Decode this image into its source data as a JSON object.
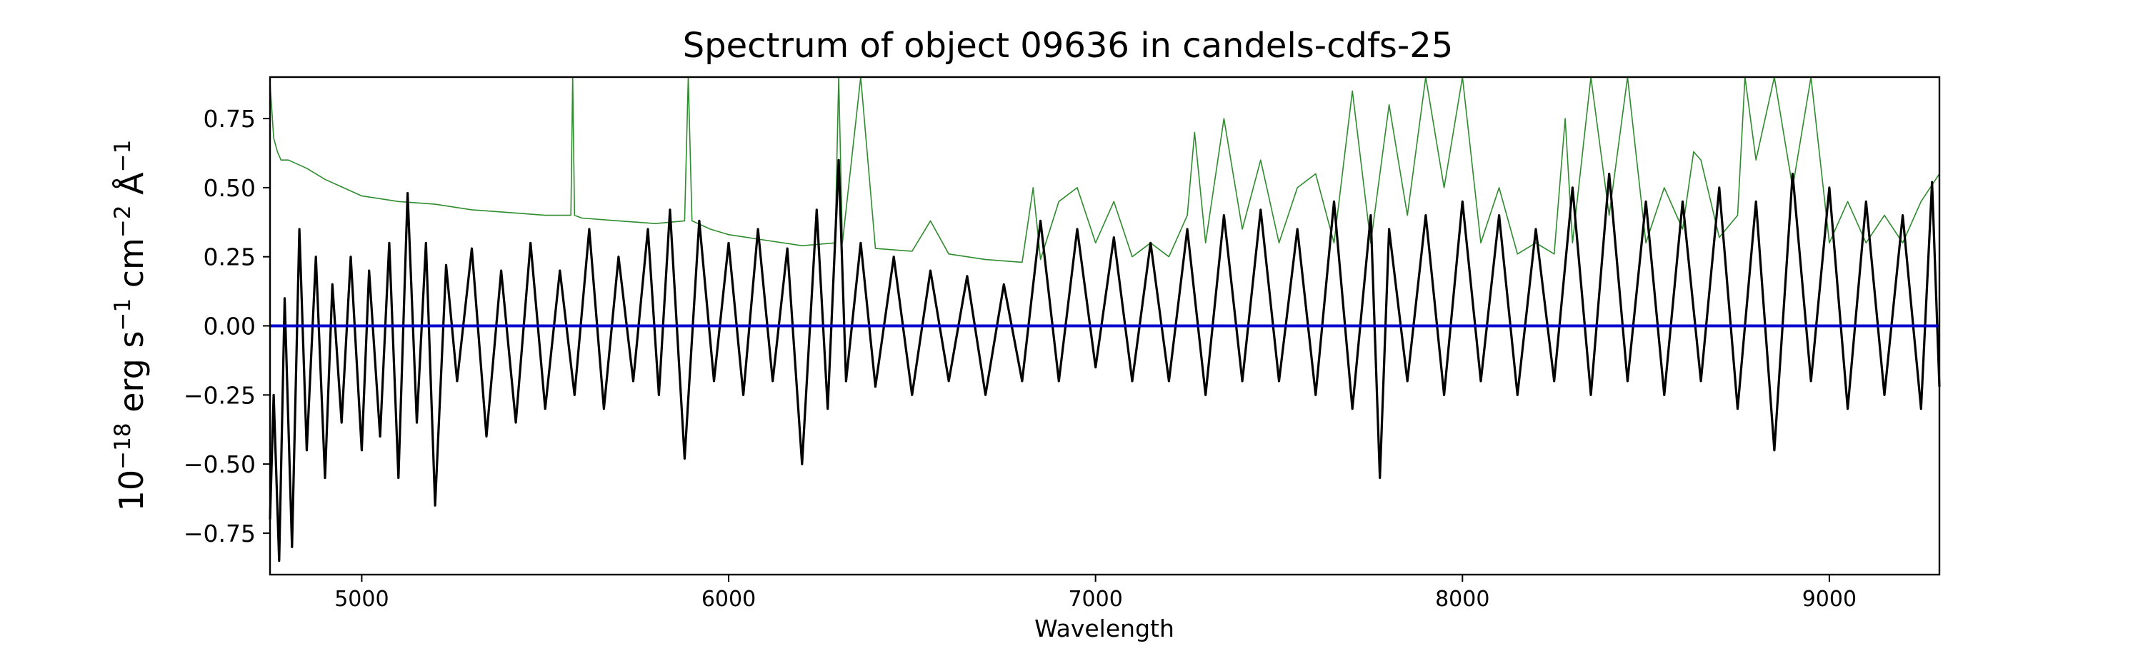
{
  "chart_data": {
    "type": "line",
    "title": "Spectrum of object 09636 in candels-cdfs-25",
    "xlabel": "Wavelength",
    "ylabel": {
      "parts": [
        "10",
        "−18",
        " erg s",
        "−1",
        " cm",
        "−2",
        " Å",
        "−1"
      ]
    },
    "xlim": [
      4750,
      9300
    ],
    "ylim": [
      -0.9,
      0.9
    ],
    "xticks": [
      5000,
      6000,
      7000,
      8000,
      9000
    ],
    "xtick_labels": [
      "5000",
      "6000",
      "7000",
      "8000",
      "9000"
    ],
    "yticks": [
      0.75,
      0.5,
      0.25,
      0.0,
      -0.25,
      -0.5,
      -0.75
    ],
    "ytick_labels": [
      "0.75",
      "0.50",
      "0.25",
      "0.00",
      "−0.25",
      "−0.50",
      "−0.75"
    ],
    "grid": false,
    "colors": {
      "flux": "#000000",
      "error": "#2e8b2e",
      "zero": "#0000cc",
      "axes": "#000000"
    },
    "series": [
      {
        "role": "error",
        "x": [
          4750,
          4760,
          4770,
          4780,
          4800,
          4850,
          4900,
          4950,
          5000,
          5100,
          5200,
          5300,
          5400,
          5500,
          5570,
          5575,
          5580,
          5600,
          5700,
          5800,
          5880,
          5890,
          5900,
          5950,
          6000,
          6100,
          6200,
          6290,
          6300,
          6310,
          6360,
          6400,
          6500,
          6550,
          6600,
          6700,
          6800,
          6830,
          6850,
          6900,
          6950,
          7000,
          7050,
          7100,
          7150,
          7200,
          7250,
          7270,
          7300,
          7350,
          7400,
          7450,
          7500,
          7550,
          7600,
          7650,
          7700,
          7750,
          7800,
          7850,
          7900,
          7950,
          8000,
          8050,
          8100,
          8150,
          8200,
          8250,
          8280,
          8300,
          8350,
          8400,
          8450,
          8500,
          8550,
          8600,
          8630,
          8650,
          8700,
          8750,
          8770,
          8800,
          8850,
          8900,
          8950,
          9000,
          9050,
          9100,
          9150,
          9200,
          9250,
          9300
        ],
        "y": [
          0.88,
          0.68,
          0.63,
          0.6,
          0.6,
          0.57,
          0.53,
          0.5,
          0.47,
          0.45,
          0.44,
          0.42,
          0.41,
          0.4,
          0.4,
          0.95,
          0.4,
          0.39,
          0.38,
          0.37,
          0.38,
          0.95,
          0.38,
          0.35,
          0.33,
          0.31,
          0.29,
          0.3,
          0.95,
          0.3,
          0.95,
          0.28,
          0.27,
          0.38,
          0.26,
          0.24,
          0.23,
          0.5,
          0.24,
          0.45,
          0.5,
          0.3,
          0.45,
          0.25,
          0.3,
          0.25,
          0.4,
          0.7,
          0.3,
          0.75,
          0.35,
          0.6,
          0.3,
          0.5,
          0.55,
          0.3,
          0.85,
          0.3,
          0.8,
          0.4,
          0.95,
          0.5,
          0.9,
          0.3,
          0.5,
          0.26,
          0.3,
          0.26,
          0.75,
          0.3,
          0.95,
          0.4,
          0.95,
          0.3,
          0.5,
          0.35,
          0.63,
          0.6,
          0.32,
          0.4,
          0.95,
          0.6,
          0.95,
          0.5,
          0.95,
          0.3,
          0.45,
          0.3,
          0.4,
          0.3,
          0.45,
          0.55
        ]
      },
      {
        "role": "flux",
        "x": [
          4750,
          4760,
          4775,
          4790,
          4810,
          4830,
          4850,
          4875,
          4900,
          4920,
          4945,
          4970,
          5000,
          5020,
          5050,
          5075,
          5100,
          5125,
          5150,
          5175,
          5200,
          5230,
          5260,
          5300,
          5340,
          5380,
          5420,
          5460,
          5500,
          5540,
          5580,
          5620,
          5660,
          5700,
          5740,
          5780,
          5810,
          5840,
          5880,
          5920,
          5960,
          6000,
          6040,
          6080,
          6120,
          6160,
          6200,
          6240,
          6270,
          6300,
          6320,
          6360,
          6400,
          6450,
          6500,
          6550,
          6600,
          6650,
          6700,
          6750,
          6800,
          6850,
          6900,
          6950,
          7000,
          7050,
          7100,
          7150,
          7200,
          7250,
          7300,
          7350,
          7400,
          7450,
          7500,
          7550,
          7600,
          7650,
          7700,
          7750,
          7775,
          7800,
          7850,
          7900,
          7950,
          8000,
          8050,
          8100,
          8150,
          8200,
          8250,
          8300,
          8350,
          8400,
          8450,
          8500,
          8550,
          8600,
          8650,
          8700,
          8750,
          8800,
          8850,
          8900,
          8950,
          9000,
          9050,
          9100,
          9150,
          9200,
          9250,
          9280,
          9300
        ],
        "y": [
          -0.7,
          -0.25,
          -0.85,
          0.1,
          -0.8,
          0.35,
          -0.45,
          0.25,
          -0.55,
          0.15,
          -0.35,
          0.25,
          -0.45,
          0.2,
          -0.4,
          0.3,
          -0.55,
          0.48,
          -0.35,
          0.3,
          -0.65,
          0.22,
          -0.2,
          0.28,
          -0.4,
          0.2,
          -0.35,
          0.3,
          -0.3,
          0.2,
          -0.25,
          0.35,
          -0.3,
          0.25,
          -0.2,
          0.35,
          -0.25,
          0.42,
          -0.48,
          0.38,
          -0.2,
          0.3,
          -0.25,
          0.35,
          -0.2,
          0.28,
          -0.5,
          0.42,
          -0.3,
          0.6,
          -0.2,
          0.3,
          -0.22,
          0.25,
          -0.25,
          0.2,
          -0.2,
          0.18,
          -0.25,
          0.15,
          -0.2,
          0.38,
          -0.2,
          0.35,
          -0.15,
          0.32,
          -0.2,
          0.3,
          -0.2,
          0.35,
          -0.25,
          0.4,
          -0.2,
          0.42,
          -0.2,
          0.35,
          -0.25,
          0.45,
          -0.3,
          0.4,
          -0.55,
          0.35,
          -0.2,
          0.4,
          -0.25,
          0.45,
          -0.2,
          0.4,
          -0.25,
          0.35,
          -0.2,
          0.5,
          -0.25,
          0.55,
          -0.2,
          0.45,
          -0.25,
          0.45,
          -0.2,
          0.5,
          -0.3,
          0.45,
          -0.45,
          0.55,
          -0.2,
          0.5,
          -0.3,
          0.45,
          -0.25,
          0.4,
          -0.3,
          0.52,
          -0.22
        ]
      },
      {
        "role": "zero",
        "x": [
          4750,
          9300
        ],
        "y": [
          0,
          0
        ]
      }
    ]
  }
}
